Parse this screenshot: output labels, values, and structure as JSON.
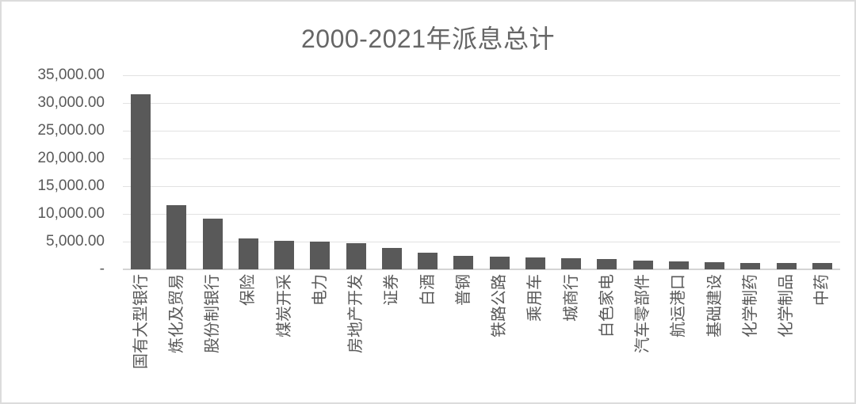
{
  "window": {
    "background_color": "#ffffff",
    "border_color": "#dcdcdc"
  },
  "chart_data": {
    "type": "bar",
    "title": "2000-2021年派息总计",
    "xlabel": "",
    "ylabel": "",
    "categories": [
      "国有大型银行",
      "炼化及贸易",
      "股份制银行",
      "保险",
      "煤炭开采",
      "电力",
      "房地产开发",
      "证券",
      "白酒",
      "普钢",
      "铁路公路",
      "乘用车",
      "城商行",
      "白色家电",
      "汽车零部件",
      "航运港口",
      "基础建设",
      "化学制药",
      "化学制品",
      "中药"
    ],
    "values": [
      31600,
      11500,
      9100,
      5500,
      5200,
      4950,
      4750,
      3800,
      3050,
      2400,
      2350,
      2100,
      1950,
      1900,
      1600,
      1480,
      1350,
      1200,
      1180,
      1120
    ],
    "ylim": [
      0,
      35000
    ],
    "y_tick_interval": 5000,
    "y_tick_labels_top_to_bottom": [
      "35,000.00",
      "30,000.00",
      "25,000.00",
      "20,000.00",
      "15,000.00",
      "10,000.00",
      "5,000.00",
      "-"
    ],
    "grid": true,
    "legend": "none",
    "x_label_rotation_degrees": -90,
    "bar_color": "#595959",
    "gridline_color": "#e2e2e2",
    "axis_line_color": "#d4d4d4",
    "title_color": "#666666",
    "tick_label_color": "#595959"
  }
}
